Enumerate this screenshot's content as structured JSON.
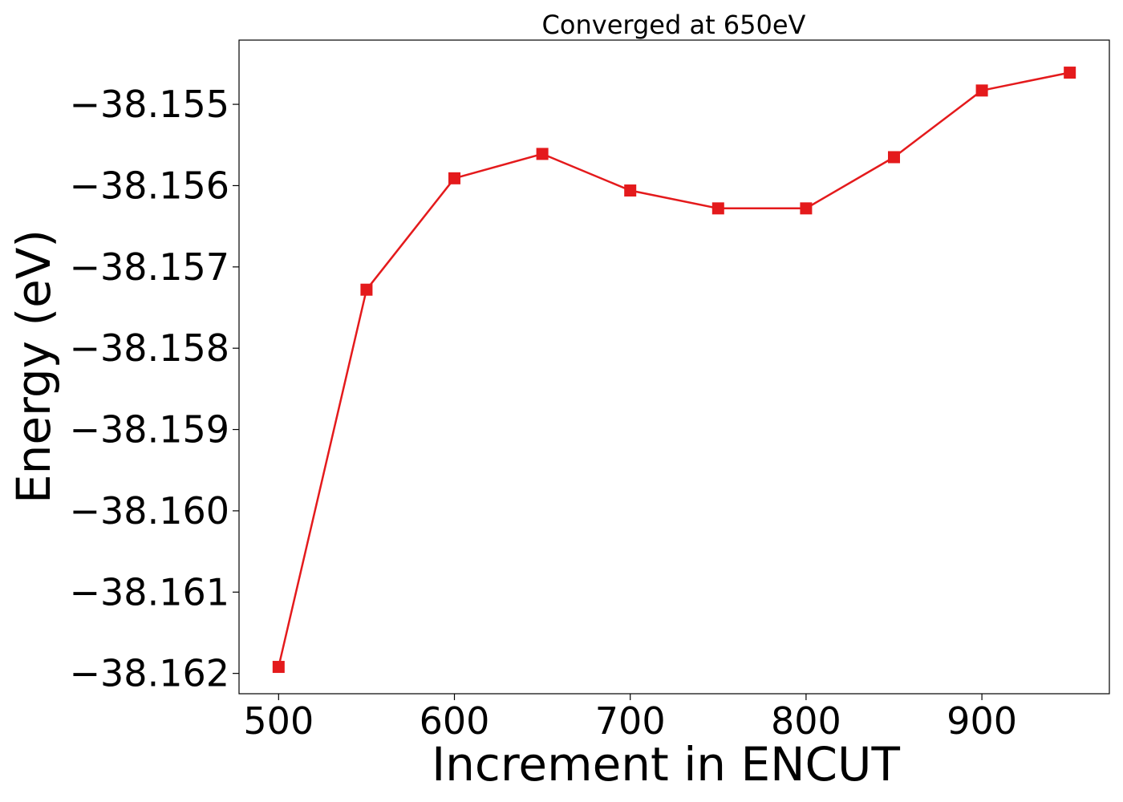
{
  "chart_data": {
    "type": "line",
    "title": "Converged at 650eV",
    "xlabel": "Increment in ENCUT",
    "ylabel": "Energy (eV)",
    "x": [
      500,
      550,
      600,
      650,
      700,
      750,
      800,
      850,
      900,
      950
    ],
    "series": [
      {
        "values": [
          -38.16192,
          -38.15728,
          -38.15591,
          -38.15561,
          -38.15606,
          -38.15628,
          -38.15628,
          -38.15565,
          -38.15483,
          -38.15461
        ],
        "color": "#e41a1c",
        "marker": "square"
      }
    ],
    "xticks": [
      500,
      600,
      700,
      800,
      900
    ],
    "xtick_labels": [
      "500",
      "600",
      "700",
      "800",
      "900"
    ],
    "yticks": [
      -38.162,
      -38.161,
      -38.16,
      -38.159,
      -38.158,
      -38.157,
      -38.156,
      -38.155
    ],
    "ytick_labels": [
      "−38.162",
      "−38.161",
      "−38.160",
      "−38.159",
      "−38.158",
      "−38.157",
      "−38.156",
      "−38.155"
    ],
    "xlim": [
      477.5,
      972.5
    ],
    "ylim": [
      -38.16225,
      -38.15421
    ],
    "grid": false,
    "legend": "none"
  }
}
